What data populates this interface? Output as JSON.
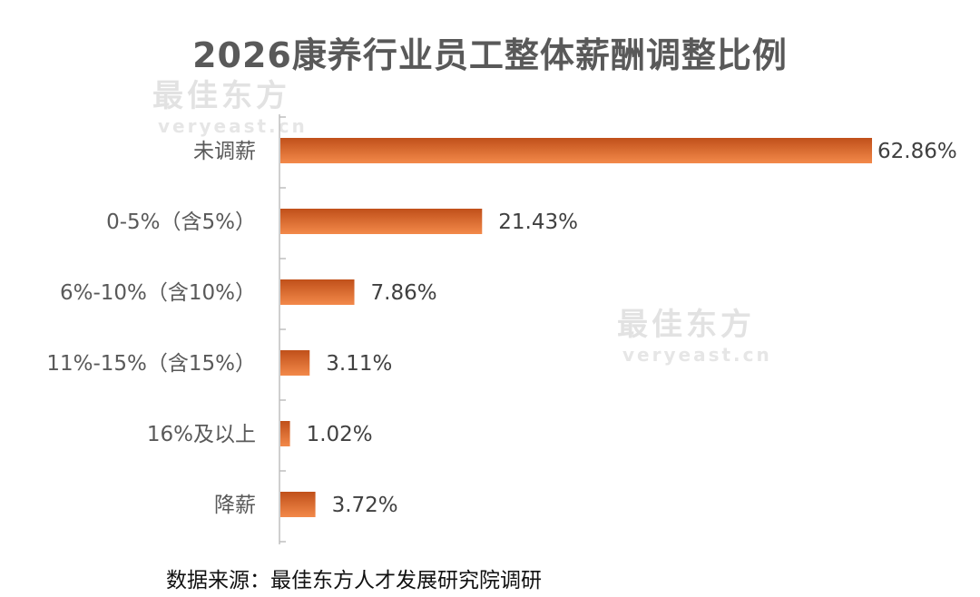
{
  "chart_data": {
    "type": "bar",
    "orientation": "horizontal",
    "title": "2026康养行业员工整体薪酬调整比例",
    "categories": [
      "未调薪",
      "0-5%（含5%）",
      "6%-10%（含10%）",
      "11%-15%（含15%）",
      "16%及以上",
      "降薪"
    ],
    "values": [
      62.86,
      21.43,
      7.86,
      3.11,
      1.02,
      3.72
    ],
    "data_labels": [
      "62.86%",
      "21.43%",
      "7.86%",
      "3.11%",
      "1.02%",
      "3.72%"
    ],
    "xlim": [
      0,
      62.86
    ],
    "grid": false,
    "legend": "none",
    "bar_color_dark": "#c0501a",
    "bar_color_light": "#f3894a"
  },
  "source": "数据来源：最佳东方人才发展研究院调研",
  "watermark": {
    "cn": "最佳东方",
    "en": "veryeast.cn"
  }
}
